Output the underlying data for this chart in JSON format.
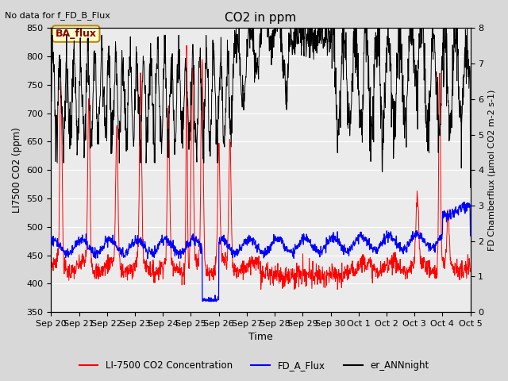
{
  "title": "CO2 in ppm",
  "top_left_text": "No data for f_FD_B_Flux",
  "annotation_box": "BA_flux",
  "xlabel": "Time",
  "ylabel_left": "LI7500 CO2 (ppm)",
  "ylabel_right": "FD Chamberflux (μmol CO2 m-2 s-1)",
  "ylim_left": [
    350,
    850
  ],
  "ylim_right": [
    0.0,
    8.0
  ],
  "yticks_left": [
    350,
    400,
    450,
    500,
    550,
    600,
    650,
    700,
    750,
    800,
    850
  ],
  "yticks_right": [
    0.0,
    1.0,
    2.0,
    3.0,
    4.0,
    5.0,
    6.0,
    7.0,
    8.0
  ],
  "xtick_labels": [
    "Sep 20",
    "Sep 21",
    "Sep 22",
    "Sep 23",
    "Sep 24",
    "Sep 25",
    "Sep 26",
    "Sep 27",
    "Sep 28",
    "Sep 29",
    "Sep 30",
    "Oct 1",
    "Oct 2",
    "Oct 3",
    "Oct 4",
    "Oct 5"
  ],
  "bg_color": "#d8d8d8",
  "plot_bg_color": "#ebebeb",
  "grid_color": "#ffffff",
  "red_color": "#ff0000",
  "blue_color": "#0000ff",
  "black_color": "#000000"
}
